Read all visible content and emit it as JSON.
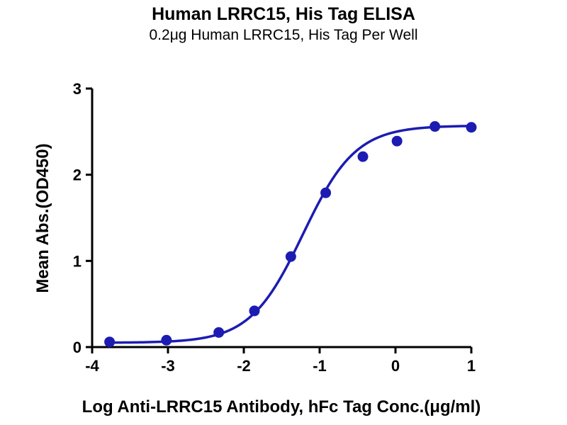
{
  "chart_data": {
    "type": "scatter",
    "title": "Human LRRC15, His Tag ELISA",
    "subtitle": "0.2μg Human LRRC15, His Tag Per Well",
    "xlabel": "Log Anti-LRRC15 Antibody, hFc Tag Conc.(μg/ml)",
    "ylabel": "Mean Abs.(OD450)",
    "xlim": [
      -4,
      1
    ],
    "ylim": [
      0,
      3
    ],
    "xticks": [
      -4,
      -3,
      -2,
      -1,
      0,
      1
    ],
    "yticks": [
      0,
      1,
      2,
      3
    ],
    "grid": false,
    "legend_position": "none",
    "axis_color": "#000000",
    "series": [
      {
        "name": "Anti-LRRC15 Antibody, hFc Tag",
        "color": "#1c1cb2",
        "marker": "circle",
        "points": [
          {
            "x": -3.77,
            "y": 0.06
          },
          {
            "x": -3.02,
            "y": 0.08
          },
          {
            "x": -2.33,
            "y": 0.17
          },
          {
            "x": -1.86,
            "y": 0.42
          },
          {
            "x": -1.38,
            "y": 1.05
          },
          {
            "x": -0.92,
            "y": 1.79
          },
          {
            "x": -0.43,
            "y": 2.21
          },
          {
            "x": 0.02,
            "y": 2.39
          },
          {
            "x": 0.52,
            "y": 2.56
          },
          {
            "x": 1.0,
            "y": 2.55
          }
        ],
        "curve_fit": {
          "model": "4PL",
          "bottom": 0.05,
          "top": 2.57,
          "log_ec50": -1.22,
          "hill": 1.25
        }
      }
    ]
  }
}
